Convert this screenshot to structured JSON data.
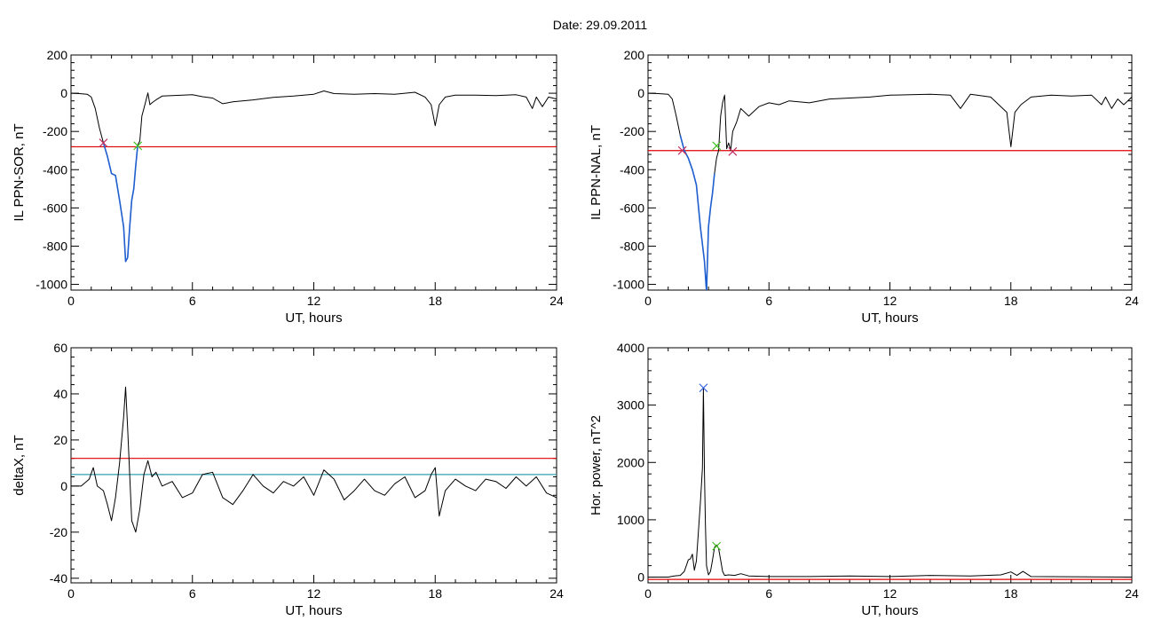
{
  "title": "Date:  29.09.2011",
  "chart_data": [
    {
      "type": "line",
      "ylabel": "IL PPN-SOR, nT",
      "xlabel": "UT, hours",
      "xlim": [
        0,
        24
      ],
      "ylim": [
        -1030,
        200
      ],
      "xticks": [
        0,
        6,
        12,
        18,
        24
      ],
      "yticks": [
        200,
        0,
        -200,
        -400,
        -600,
        -800,
        -1000
      ],
      "series": [
        {
          "color": "#000000",
          "x": [
            0,
            0.4,
            0.8,
            1.0,
            1.2,
            1.4,
            1.6,
            1.8,
            2.0,
            2.2,
            2.4,
            2.6,
            2.7,
            2.8,
            2.9,
            3.0,
            3.1,
            3.2,
            3.3,
            3.4,
            3.5,
            3.6,
            3.7,
            3.8,
            3.9,
            4.0,
            4.2,
            4.5,
            5.0,
            5.5,
            6.0,
            6.5,
            7.0,
            7.5,
            8.0,
            9.0,
            10,
            11,
            12,
            12.5,
            13,
            14,
            15,
            16,
            17,
            17.5,
            17.8,
            18.0,
            18.2,
            18.5,
            19,
            20,
            21,
            22,
            22.5,
            22.8,
            23.0,
            23.3,
            23.6,
            24
          ],
          "y": [
            0,
            -2,
            -5,
            -20,
            -80,
            -180,
            -260,
            -330,
            -420,
            -430,
            -560,
            -700,
            -880,
            -860,
            -700,
            -560,
            -500,
            -380,
            -270,
            -250,
            -120,
            -80,
            -40,
            2,
            -60,
            -50,
            -35,
            -15,
            -12,
            -10,
            -8,
            -18,
            -25,
            -55,
            -45,
            -35,
            -22,
            -15,
            -5,
            12,
            -2,
            -5,
            -2,
            -5,
            5,
            -20,
            -60,
            -170,
            -60,
            -20,
            -10,
            -10,
            -12,
            -8,
            -20,
            -80,
            -20,
            -70,
            -20,
            -30
          ]
        },
        {
          "color": "#1f5fd0",
          "x": [
            1.6,
            1.8,
            2.0,
            2.2,
            2.4,
            2.6,
            2.7,
            2.8,
            2.9,
            3.0,
            3.1,
            3.2,
            3.3
          ],
          "y": [
            -260,
            -330,
            -420,
            -430,
            -560,
            -700,
            -880,
            -860,
            -700,
            -560,
            -500,
            -380,
            -270
          ]
        }
      ],
      "hlines": [
        {
          "y": -280,
          "color": "#e00000"
        }
      ],
      "markers": [
        {
          "x": 1.6,
          "y": -260,
          "color": "#c03060"
        },
        {
          "x": 3.3,
          "y": -275,
          "color": "#40c020"
        }
      ]
    },
    {
      "type": "line",
      "ylabel": "IL PPN-NAL, nT",
      "xlabel": "UT, hours",
      "xlim": [
        0,
        24
      ],
      "ylim": [
        -1030,
        200
      ],
      "xticks": [
        0,
        6,
        12,
        18,
        24
      ],
      "yticks": [
        200,
        0,
        -200,
        -400,
        -600,
        -800,
        -1000
      ],
      "series": [
        {
          "color": "#000000",
          "x": [
            0,
            0.5,
            1.0,
            1.2,
            1.4,
            1.6,
            1.8,
            2.0,
            2.2,
            2.4,
            2.6,
            2.8,
            2.9,
            3.0,
            3.1,
            3.2,
            3.3,
            3.4,
            3.5,
            3.6,
            3.7,
            3.8,
            3.9,
            4.0,
            4.1,
            4.2,
            4.4,
            4.6,
            5.0,
            5.5,
            6.0,
            6.5,
            7.0,
            8.0,
            9.0,
            10,
            11,
            12,
            13,
            14,
            15,
            15.5,
            16,
            17,
            17.8,
            18.0,
            18.2,
            18.5,
            19,
            20,
            21,
            22,
            22.5,
            22.7,
            23.0,
            23.3,
            23.6,
            24
          ],
          "y": [
            0,
            -2,
            -5,
            -30,
            -120,
            -220,
            -300,
            -340,
            -400,
            -480,
            -700,
            -880,
            -1040,
            -700,
            -600,
            -520,
            -420,
            -340,
            -300,
            -120,
            -50,
            -10,
            -290,
            -260,
            -300,
            -200,
            -150,
            -80,
            -120,
            -70,
            -50,
            -60,
            -40,
            -50,
            -30,
            -25,
            -20,
            -10,
            -8,
            -5,
            -10,
            -80,
            -5,
            -20,
            -100,
            -280,
            -100,
            -60,
            -20,
            -10,
            -15,
            -10,
            -60,
            -20,
            -80,
            -30,
            -60,
            -20
          ]
        },
        {
          "color": "#1f5fd0",
          "x": [
            1.6,
            1.8,
            2.0,
            2.2,
            2.4,
            2.6,
            2.8,
            2.9,
            3.0,
            3.1,
            3.2,
            3.3
          ],
          "y": [
            -220,
            -300,
            -340,
            -400,
            -480,
            -700,
            -880,
            -1040,
            -700,
            -600,
            -520,
            -420
          ]
        }
      ],
      "hlines": [
        {
          "y": -300,
          "color": "#e00000"
        }
      ],
      "markers": [
        {
          "x": 1.7,
          "y": -300,
          "color": "#c03060"
        },
        {
          "x": 3.4,
          "y": -275,
          "color": "#40c020"
        },
        {
          "x": 4.2,
          "y": -305,
          "color": "#c03060"
        }
      ]
    },
    {
      "type": "line",
      "ylabel": "deltaX, nT",
      "xlabel": "UT, hours",
      "xlim": [
        0,
        24
      ],
      "ylim": [
        -42,
        60
      ],
      "xticks": [
        0,
        6,
        12,
        18,
        24
      ],
      "yticks": [
        60,
        40,
        20,
        0,
        -20,
        -40
      ],
      "series": [
        {
          "color": "#000000",
          "x": [
            0,
            0.5,
            0.9,
            1.1,
            1.3,
            1.6,
            1.8,
            2.0,
            2.2,
            2.4,
            2.6,
            2.7,
            2.8,
            2.9,
            3.0,
            3.2,
            3.4,
            3.6,
            3.8,
            4.0,
            4.2,
            4.5,
            5.0,
            5.5,
            6.0,
            6.5,
            7.0,
            7.5,
            8.0,
            8.5,
            9.0,
            9.5,
            10,
            10.5,
            11,
            11.5,
            12,
            12.5,
            13,
            13.5,
            14,
            14.5,
            15,
            15.5,
            16,
            16.5,
            17,
            17.5,
            17.8,
            18.0,
            18.2,
            18.5,
            19,
            19.5,
            20,
            20.5,
            21,
            21.5,
            22,
            22.5,
            23,
            23.5,
            24
          ],
          "y": [
            0,
            0,
            3,
            8,
            0,
            -2,
            -8,
            -15,
            -5,
            10,
            30,
            43,
            25,
            5,
            -15,
            -20,
            -10,
            5,
            11,
            4,
            6,
            0,
            2,
            -5,
            -3,
            5,
            6,
            -5,
            -8,
            -2,
            5,
            0,
            -3,
            2,
            0,
            4,
            -4,
            7,
            3,
            -6,
            -2,
            3,
            -2,
            -4,
            1,
            4,
            -5,
            -2,
            5,
            8,
            -13,
            -2,
            3,
            0,
            -2,
            3,
            2,
            -1,
            4,
            0,
            4,
            -3,
            -5
          ]
        }
      ],
      "hlines": [
        {
          "y": 12,
          "color": "#e00000"
        },
        {
          "y": 5,
          "color": "#30a0b0"
        }
      ],
      "markers": []
    },
    {
      "type": "line",
      "ylabel": "Hor. power, nT^2",
      "xlabel": "UT, hours",
      "xlim": [
        0,
        24
      ],
      "ylim": [
        -100,
        4000
      ],
      "xticks": [
        0,
        6,
        12,
        18,
        24
      ],
      "yticks": [
        4000,
        3000,
        2000,
        1000,
        0
      ],
      "series": [
        {
          "color": "#000000",
          "x": [
            0,
            1.0,
            1.3,
            1.6,
            1.8,
            2.0,
            2.1,
            2.2,
            2.3,
            2.4,
            2.5,
            2.6,
            2.7,
            2.75,
            2.8,
            2.85,
            2.9,
            3.0,
            3.1,
            3.2,
            3.3,
            3.4,
            3.5,
            3.6,
            3.7,
            3.8,
            4.0,
            4.3,
            4.6,
            5.0,
            6.0,
            8.0,
            10,
            12,
            14,
            16,
            17.5,
            18.0,
            18.3,
            18.6,
            19,
            24
          ],
          "y": [
            0,
            0,
            20,
            30,
            100,
            300,
            320,
            400,
            120,
            280,
            800,
            1300,
            1900,
            3300,
            1800,
            900,
            200,
            40,
            100,
            300,
            520,
            560,
            500,
            300,
            100,
            30,
            40,
            30,
            60,
            20,
            10,
            10,
            20,
            10,
            30,
            20,
            40,
            90,
            30,
            100,
            10,
            0
          ]
        }
      ],
      "hlines": [
        {
          "y": -40,
          "color": "#e00000"
        }
      ],
      "markers": [
        {
          "x": 2.75,
          "y": 3300,
          "color": "#3060e0"
        },
        {
          "x": 3.4,
          "y": 540,
          "color": "#40c020"
        }
      ]
    }
  ]
}
